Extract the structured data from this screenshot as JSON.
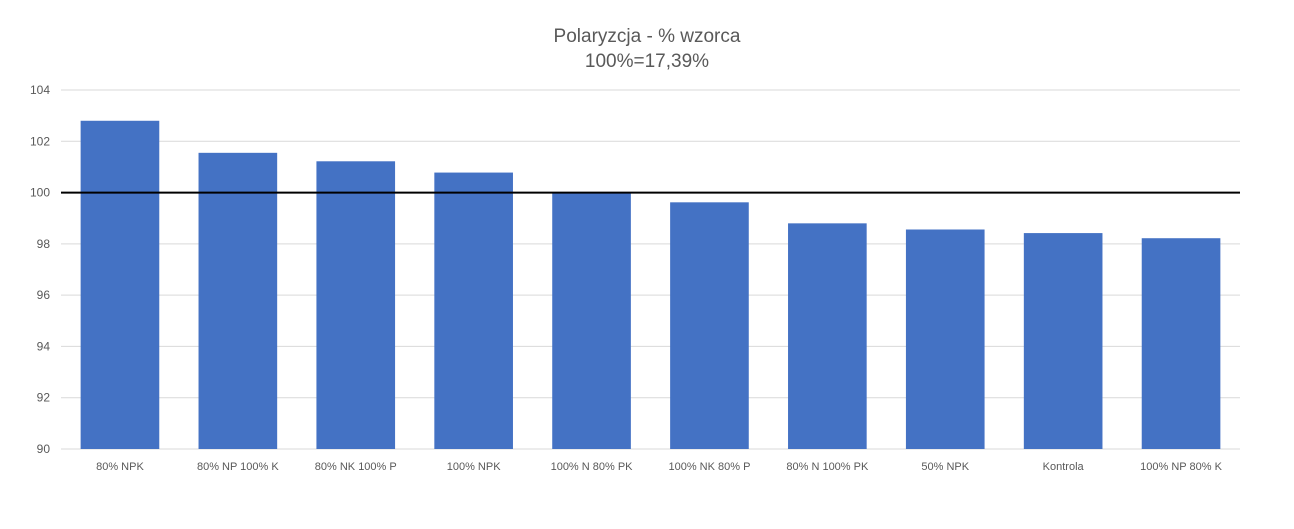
{
  "chart_data": {
    "type": "bar",
    "title": "Polaryzcja - % wzorca",
    "subtitle": "100%=17,39%",
    "xlabel": "",
    "ylabel": "",
    "categories": [
      "80% NPK",
      "80% NP 100% K",
      "80% NK 100% P",
      "100% NPK",
      "100% N 80% PK",
      "100% NK 80% P",
      "80% N 100% PK",
      "50% NPK",
      "Kontrola",
      "100% NP 80% K"
    ],
    "values": [
      102.8,
      101.55,
      101.22,
      100.78,
      100.0,
      99.62,
      98.8,
      98.56,
      98.42,
      98.22
    ],
    "ylim": [
      90,
      104
    ],
    "yticks": [
      90,
      92,
      94,
      96,
      98,
      100,
      102,
      104
    ],
    "reference_line": 100,
    "grid": true,
    "legend": "none",
    "colors": {
      "bar": "#4472C4",
      "grid": "#D9D9D9",
      "reference": "#000000",
      "text": "#595959"
    }
  }
}
